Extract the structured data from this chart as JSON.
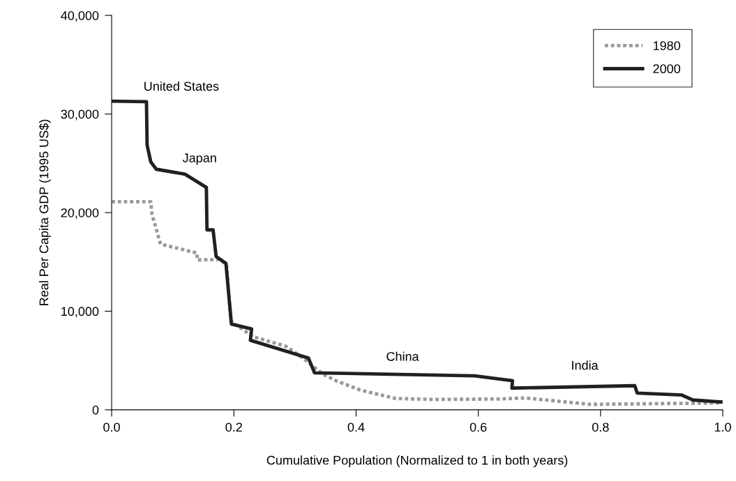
{
  "chart_data": {
    "type": "line",
    "xlabel": "Cumulative Population (Normalized to 1 in both years)",
    "ylabel": "Real Per Capita GDP (1995 US$)",
    "xlim": [
      0,
      1
    ],
    "ylim": [
      0,
      40000
    ],
    "xticks": [
      {
        "value": 0,
        "label": "0.0"
      },
      {
        "value": 0.2,
        "label": "0.2"
      },
      {
        "value": 0.4,
        "label": "0.4"
      },
      {
        "value": 0.6,
        "label": "0.6"
      },
      {
        "value": 0.8,
        "label": "0.8"
      },
      {
        "value": 1,
        "label": "1.0"
      }
    ],
    "yticks": [
      {
        "value": 0,
        "label": "0"
      },
      {
        "value": 10000,
        "label": "10,000"
      },
      {
        "value": 20000,
        "label": "20,000"
      },
      {
        "value": 30000,
        "label": "30,000"
      },
      {
        "value": 40000,
        "label": "40,000"
      }
    ],
    "grid": false,
    "legend": "top right",
    "marker": "none",
    "series": [
      {
        "name": "1980",
        "color": "#999999",
        "line_style": "dotted",
        "x": [
          0,
          0.064,
          0.066,
          0.08,
          0.14,
          0.14,
          0.177,
          0.188,
          0.195,
          0.198,
          0.232,
          0.285,
          0.312,
          0.346,
          0.369,
          0.407,
          0.465,
          0.525,
          0.632,
          0.677,
          0.784,
          0.997
        ],
        "values": [
          21100,
          21100,
          19850,
          16800,
          15900,
          15200,
          15250,
          14700,
          9050,
          8850,
          7400,
          6450,
          5300,
          3600,
          2900,
          2000,
          1150,
          1050,
          1100,
          1200,
          550,
          700
        ]
      },
      {
        "name": "2000",
        "color": "#231f20",
        "line_style": "solid",
        "x": [
          0,
          0.057,
          0.058,
          0.064,
          0.073,
          0.12,
          0.155,
          0.156,
          0.166,
          0.171,
          0.187,
          0.196,
          0.229,
          0.227,
          0.322,
          0.332,
          0.594,
          0.656,
          0.655,
          0.856,
          0.86,
          0.933,
          0.951,
          0.997
        ],
        "values": [
          31300,
          31250,
          26850,
          25150,
          24400,
          23900,
          22550,
          18250,
          18250,
          15550,
          14850,
          8700,
          8200,
          7050,
          5250,
          3750,
          3450,
          2950,
          2200,
          2450,
          1700,
          1500,
          1000,
          800
        ]
      }
    ],
    "annotations": [
      "United States",
      "Japan",
      "China",
      "India"
    ]
  }
}
